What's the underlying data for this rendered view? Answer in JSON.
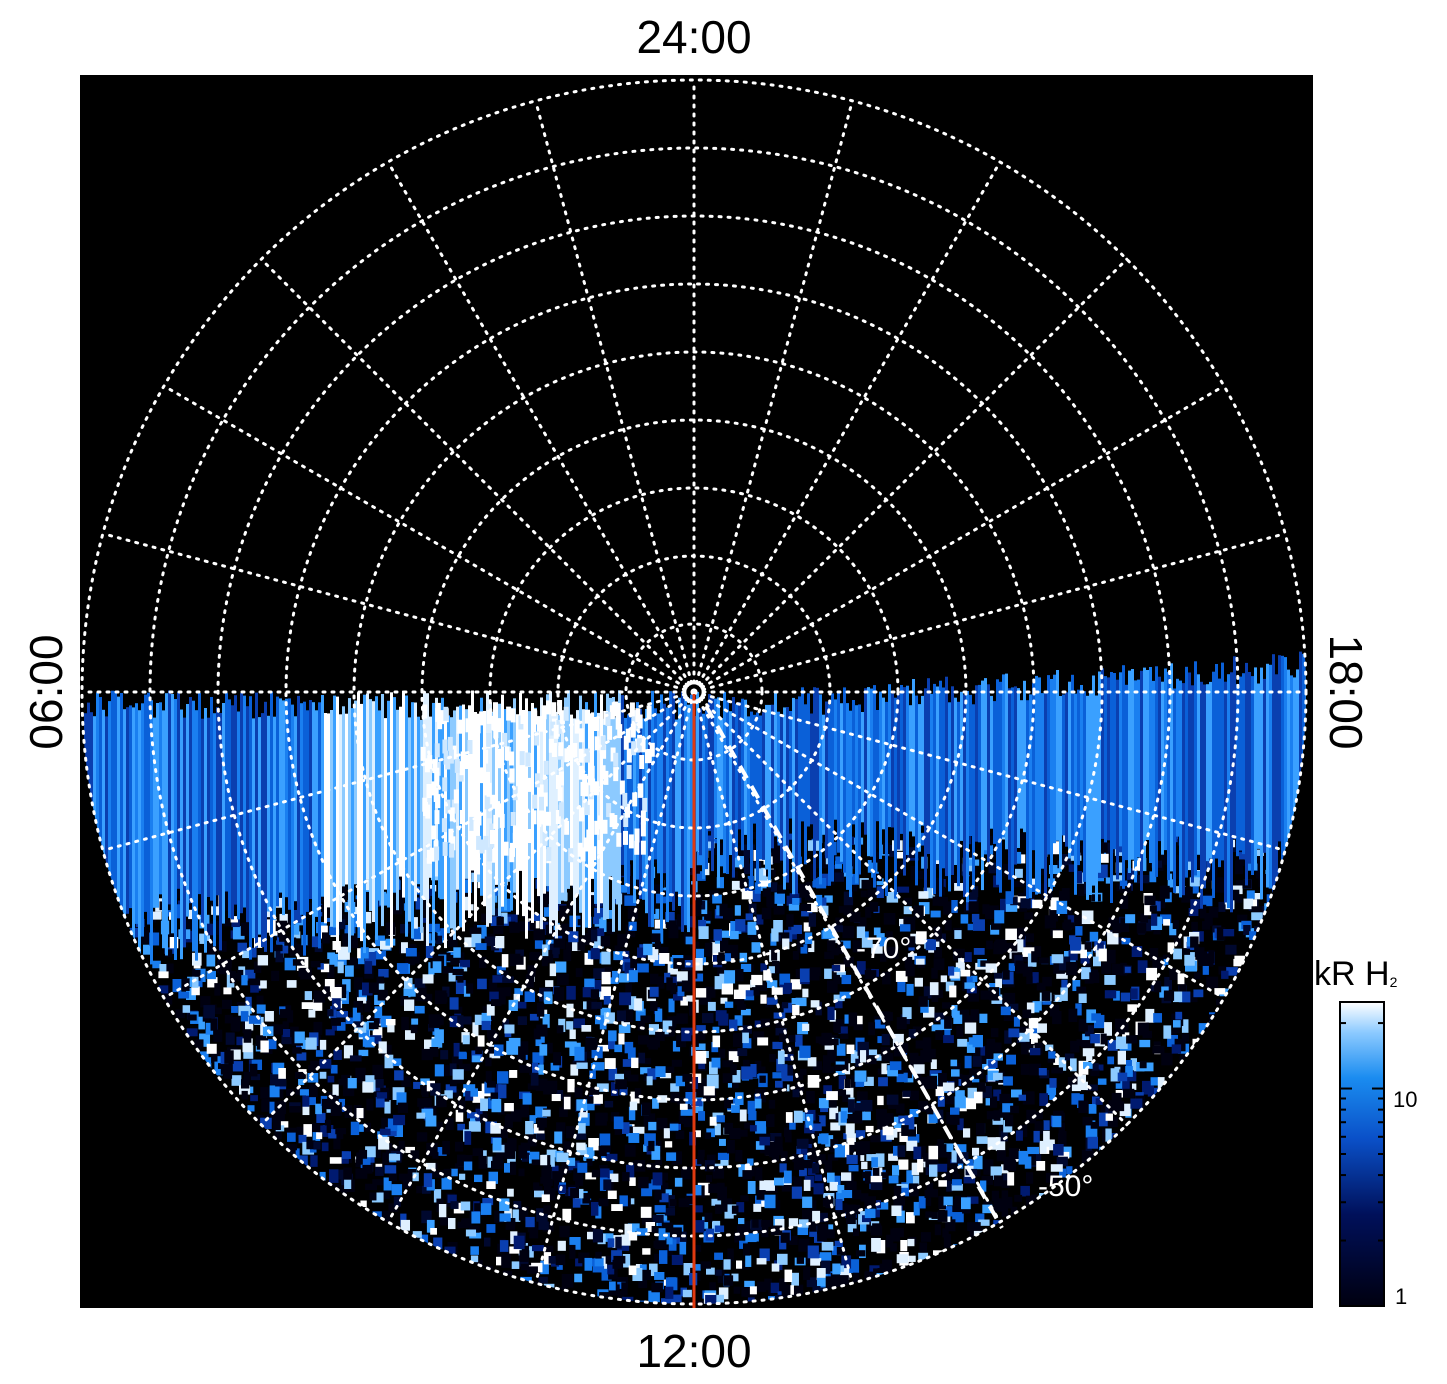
{
  "chart_data": {
    "type": "heatmap",
    "projection": "polar (southern hemisphere, local time around pole)",
    "local_time_labels": {
      "top": "24:00",
      "bottom": "12:00",
      "left": "06:00",
      "right": "18:00"
    },
    "latitude_labels": [
      {
        "text": "-70°",
        "latitude": -70
      },
      {
        "text": "-50°",
        "latitude": -50
      }
    ],
    "colorbar": {
      "title": "kR H",
      "title_subscript": "2",
      "scale": "log",
      "range": [
        1,
        25
      ],
      "ticks": [
        {
          "value": 10,
          "label": "10"
        },
        {
          "value": 1,
          "label": "1"
        }
      ]
    },
    "grid": {
      "shown": true,
      "style": "dotted",
      "color": "#ffffff",
      "latitude_circles": [
        -80,
        -70,
        -60,
        -50,
        -40,
        -30,
        -20,
        -10,
        0
      ],
      "meridian_count": 24
    },
    "colors": {
      "background": "#000000",
      "scale_low": "#000014",
      "scale_mid": "#0a60d8",
      "scale_high": "#ffffff",
      "reference_line": "#e03a10"
    }
  }
}
